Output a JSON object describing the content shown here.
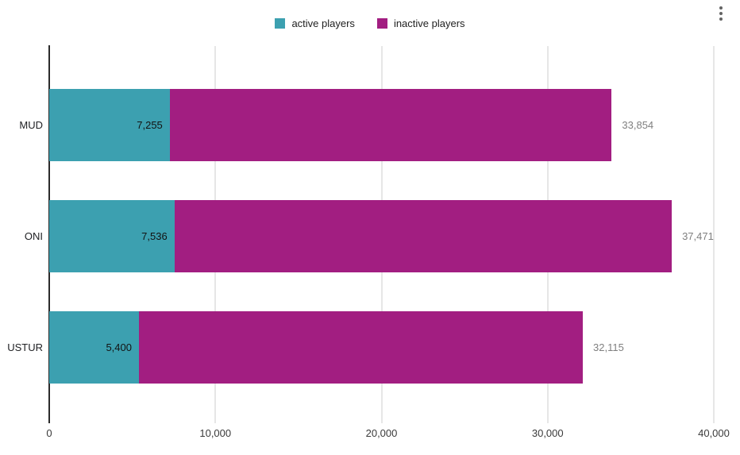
{
  "toolbar": {
    "menu_icon": "kebab-menu"
  },
  "legend": {
    "position": "top-center",
    "items": [
      {
        "label": "active players",
        "color": "#3CA0B0"
      },
      {
        "label": "inactive players",
        "color": "#A21E81"
      }
    ]
  },
  "chart_data": {
    "type": "bar",
    "orientation": "horizontal",
    "stacked": true,
    "title": "",
    "xlabel": "",
    "ylabel": "",
    "categories": [
      "MUD",
      "ONI",
      "USTUR"
    ],
    "series": [
      {
        "name": "active players",
        "color": "#3CA0B0",
        "values": [
          7255,
          7536,
          5400
        ],
        "value_labels": [
          "7,255",
          "7,536",
          "5,400"
        ]
      },
      {
        "name": "inactive players",
        "color": "#A21E81",
        "values": [
          26599,
          29935,
          26715
        ]
      }
    ],
    "bar_totals": [
      33854,
      37471,
      32115
    ],
    "bar_total_labels": [
      "33,854",
      "37,471",
      "32,115"
    ],
    "x_ticks": [
      "0",
      "10,000",
      "20,000",
      "30,000",
      "40,000"
    ],
    "x_tick_values": [
      0,
      10000,
      20000,
      30000,
      40000
    ],
    "xlim": [
      0,
      40000
    ],
    "grid": true,
    "legend_position": "top",
    "colors": {
      "background": "#ffffff",
      "gridline": "#e6e6e6",
      "axis_line": "#2b2b2b",
      "inside_value_label": "#131313",
      "total_label": "#7f7f7f",
      "tick_label": "#3a3a3a",
      "category_label": "#202124"
    }
  }
}
